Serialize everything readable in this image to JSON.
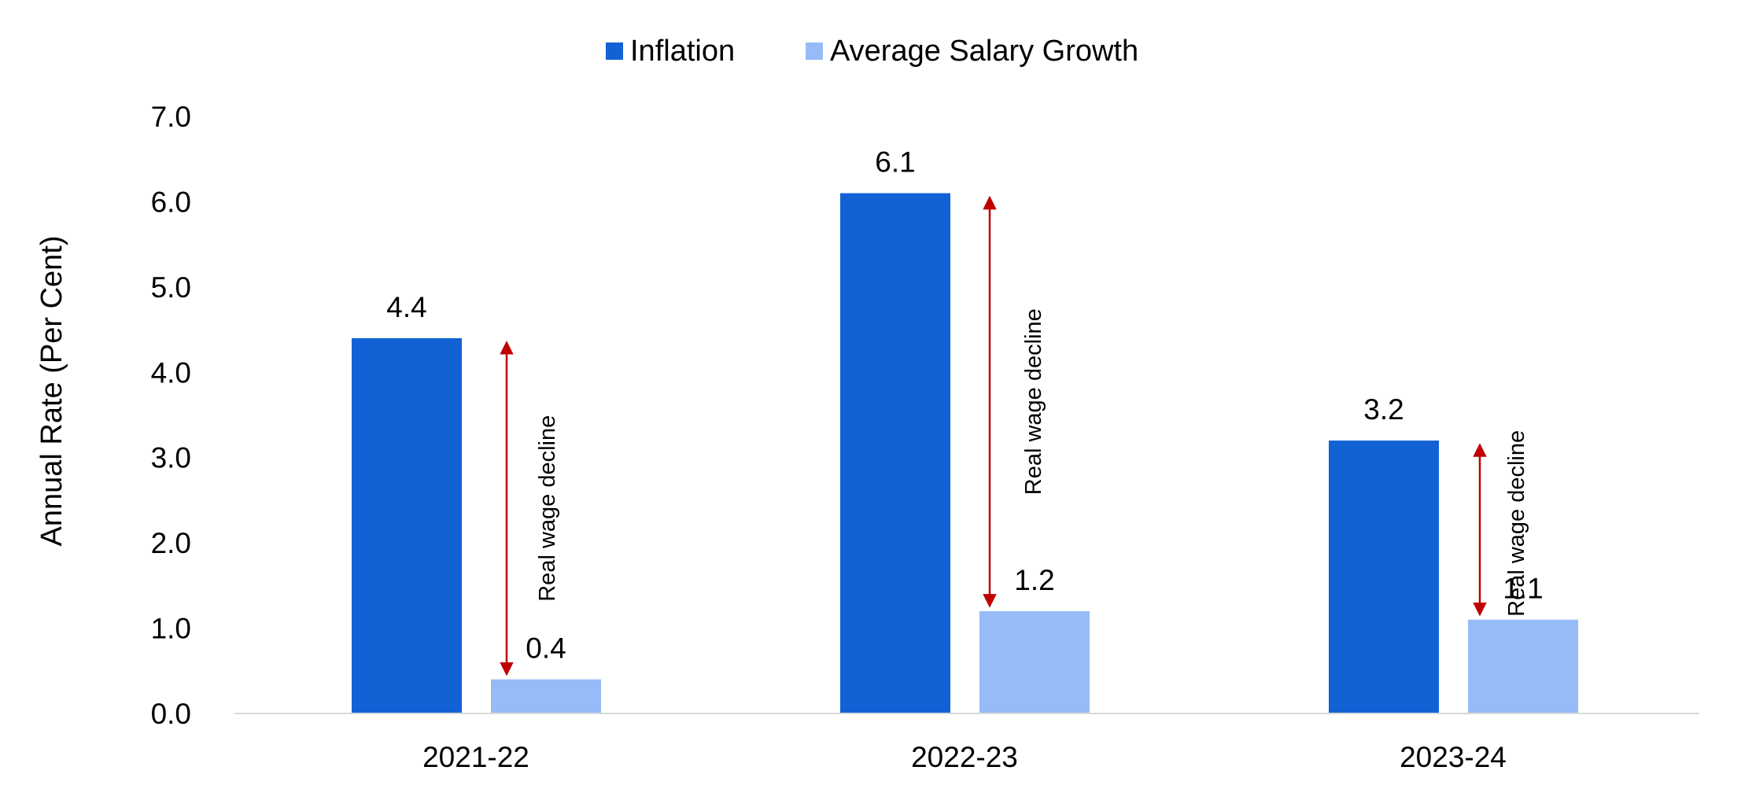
{
  "chart_data": {
    "type": "bar",
    "categories": [
      "2021-22",
      "2022-23",
      "2023-24"
    ],
    "series": [
      {
        "name": "Inflation",
        "color": "#1262D6",
        "values": [
          4.4,
          6.1,
          3.2
        ],
        "labels": [
          "4.4",
          "6.1",
          "3.2"
        ]
      },
      {
        "name": "Average Salary Growth",
        "color": "#97BBF7",
        "values": [
          0.4,
          1.2,
          1.1
        ],
        "labels": [
          "0.4",
          "1.2",
          "1.1"
        ]
      }
    ],
    "xlabel": "",
    "ylabel": "Annual Rate (Per Cent)",
    "ylim": [
      0,
      7
    ],
    "yticks": [
      "0.0",
      "1.0",
      "2.0",
      "3.0",
      "4.0",
      "5.0",
      "6.0",
      "7.0"
    ],
    "grid": false,
    "legend_position": "top",
    "annotations": [
      {
        "category": "2021-22",
        "text": "Real wage decline",
        "from": 0.4,
        "to": 4.4,
        "arrow_color": "#C00000"
      },
      {
        "category": "2022-23",
        "text": "Real wage decline",
        "from": 1.2,
        "to": 6.1,
        "arrow_color": "#C00000"
      },
      {
        "category": "2023-24",
        "text": "Real wage decline",
        "from": 1.1,
        "to": 3.2,
        "arrow_color": "#C00000"
      }
    ]
  }
}
